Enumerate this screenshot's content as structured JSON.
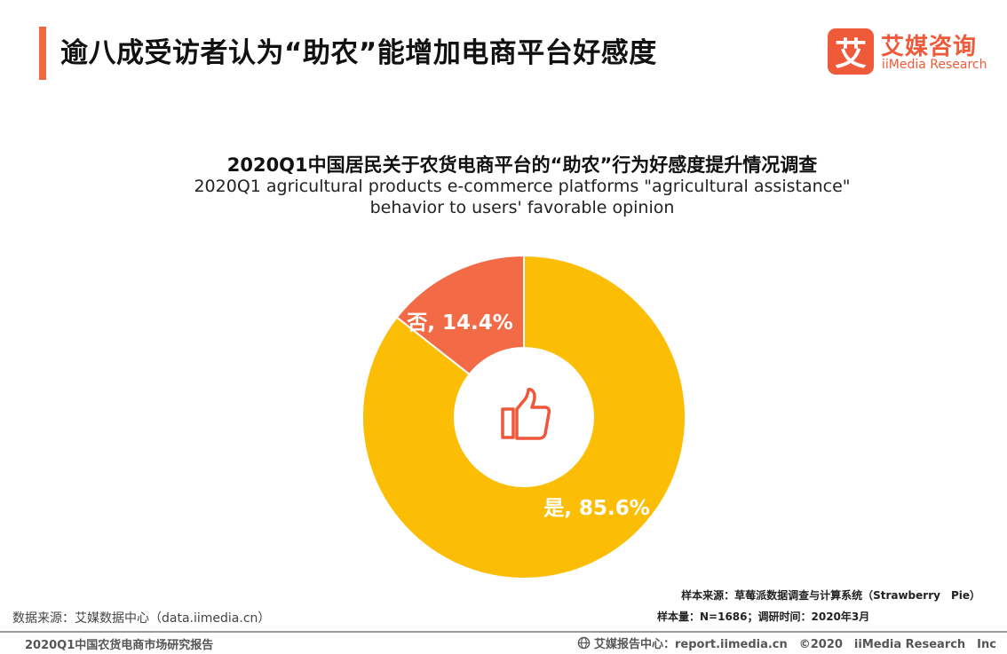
{
  "header": {
    "title": "逾八成受访者认为“助农”能增加电商平台好感度",
    "accent_color": "#f26a3b"
  },
  "logo": {
    "mark_char": "艾",
    "name_cn": "艾媒咨询",
    "name_en": "iiMedia Research",
    "brand_color": "#ee5a3a"
  },
  "chart_data": {
    "type": "pie",
    "title": "2020Q1中国居民关于农货电商平台的“助农”行为好感度提升情况调查",
    "subtitle": "2020Q1 agricultural products e-commerce platforms \"agricultural assistance\" behavior to users' favorable opinion",
    "donut": true,
    "center_icon": "thumbs-up-icon",
    "slices": [
      {
        "label": "是",
        "value": 85.6,
        "display": "是, 85.6%",
        "color": "#fcbd05"
      },
      {
        "label": "否",
        "value": 14.4,
        "display": "否, 14.4%",
        "color": "#f26b46"
      }
    ]
  },
  "notes": {
    "sample_source": "样本来源：草莓派数据调查与计算系统（Strawberry　Pie）",
    "sample_size": "样本量：N=1686；调研时间：2020年3月",
    "data_source": "数据来源：艾媒数据中心（data.iimedia.cn）"
  },
  "footer": {
    "left": "2020Q1中国农货电商市场研究报告",
    "right": "艾媒报告中心：report.iimedia.cn　©2020　iiMedia Research　Inc",
    "globe_icon": "globe-icon"
  }
}
